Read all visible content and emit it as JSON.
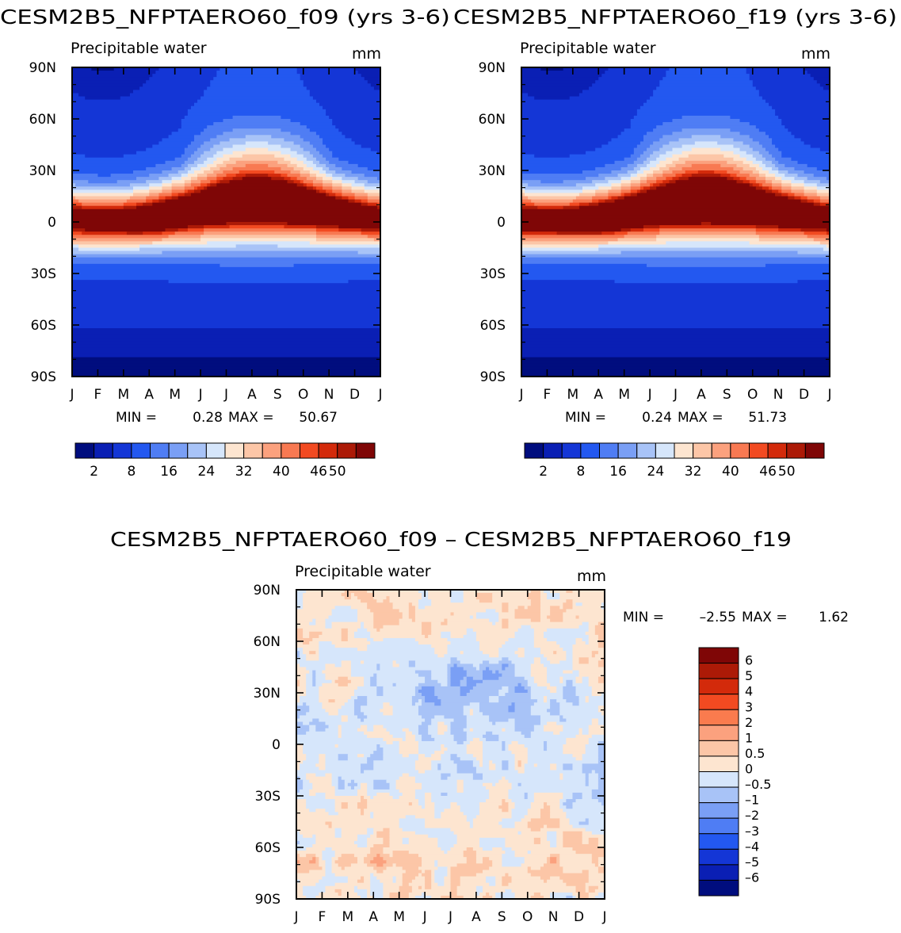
{
  "chart_data": [
    {
      "type": "heatmap",
      "title": "CESM2B5_NFPTAERO60_f09 (yrs 3-6)",
      "left_label": "Precipitable water",
      "units": "mm",
      "x_ticks": [
        "J",
        "F",
        "M",
        "A",
        "M",
        "J",
        "J",
        "A",
        "S",
        "O",
        "N",
        "D",
        "J"
      ],
      "y_ticks": [
        "90N",
        "60N",
        "30N",
        "0",
        "30S",
        "60S",
        "90S"
      ],
      "stats": {
        "min_label": "MIN =",
        "min": "0.28",
        "max_label": "MAX =",
        "max": "50.67"
      },
      "colorbar": {
        "labels": [
          "2",
          "8",
          "16",
          "24",
          "32",
          "40",
          "46",
          "50"
        ],
        "colors": [
          "#000d7e",
          "#0a1fb4",
          "#1436d6",
          "#2358f0",
          "#4f7df4",
          "#7a9ff5",
          "#a8c3f7",
          "#d6e6fb",
          "#fde5d0",
          "#fcc6a7",
          "#fba17e",
          "#f87952",
          "#f24a21",
          "#d32a0b",
          "#ac1a07",
          "#7f0606"
        ]
      },
      "field": "precipitable water, seasonal peak in northern summer near 10N",
      "peak_month": 7.5,
      "peak_lat": 8,
      "value_range": [
        0.28,
        50.67
      ]
    },
    {
      "type": "heatmap",
      "title": "CESM2B5_NFPTAERO60_f19 (yrs 3-6)",
      "left_label": "Precipitable water",
      "units": "mm",
      "x_ticks": [
        "J",
        "F",
        "M",
        "A",
        "M",
        "J",
        "J",
        "A",
        "S",
        "O",
        "N",
        "D",
        "J"
      ],
      "y_ticks": [
        "90N",
        "60N",
        "30N",
        "0",
        "30S",
        "60S",
        "90S"
      ],
      "stats": {
        "min_label": "MIN =",
        "min": "0.24",
        "max_label": "MAX =",
        "max": "51.73"
      },
      "colorbar": {
        "labels": [
          "2",
          "8",
          "16",
          "24",
          "32",
          "40",
          "46",
          "50"
        ],
        "colors": [
          "#000d7e",
          "#0a1fb4",
          "#1436d6",
          "#2358f0",
          "#4f7df4",
          "#7a9ff5",
          "#a8c3f7",
          "#d6e6fb",
          "#fde5d0",
          "#fcc6a7",
          "#fba17e",
          "#f87952",
          "#f24a21",
          "#d32a0b",
          "#ac1a07",
          "#7f0606"
        ]
      },
      "field": "precipitable water, seasonal peak in northern summer near 10N",
      "peak_month": 7.5,
      "peak_lat": 8,
      "value_range": [
        0.24,
        51.73
      ]
    },
    {
      "type": "heatmap",
      "title": "CESM2B5_NFPTAERO60_f09 – CESM2B5_NFPTAERO60_f19",
      "left_label": "Precipitable water",
      "units": "mm",
      "x_ticks": [
        "J",
        "F",
        "M",
        "A",
        "M",
        "J",
        "J",
        "A",
        "S",
        "O",
        "N",
        "D",
        "J"
      ],
      "y_ticks": [
        "90N",
        "60N",
        "30N",
        "0",
        "30S",
        "60S",
        "90S"
      ],
      "stats": {
        "min_label": "MIN =",
        "min": "–2.55",
        "max_label": "MAX =",
        "max": "1.62"
      },
      "colorbar": {
        "labels": [
          "6",
          "5",
          "4",
          "3",
          "2",
          "1",
          "0.5",
          "0",
          "–0.5",
          "–1",
          "–2",
          "–3",
          "–4",
          "–5",
          "–6"
        ],
        "colors": [
          "#7f0606",
          "#ac1a07",
          "#d32a0b",
          "#f24a21",
          "#fa7b4e",
          "#fba17e",
          "#fcc6a7",
          "#fde5d0",
          "#d6e6fb",
          "#a8c3f7",
          "#7a9ff5",
          "#4f7df4",
          "#2358f0",
          "#1436d6",
          "#0a1fb4",
          "#000d7e"
        ]
      },
      "field": "difference f09 minus f19, mostly between -1 and 0.5 mm",
      "value_range": [
        -2.55,
        1.62
      ]
    }
  ]
}
